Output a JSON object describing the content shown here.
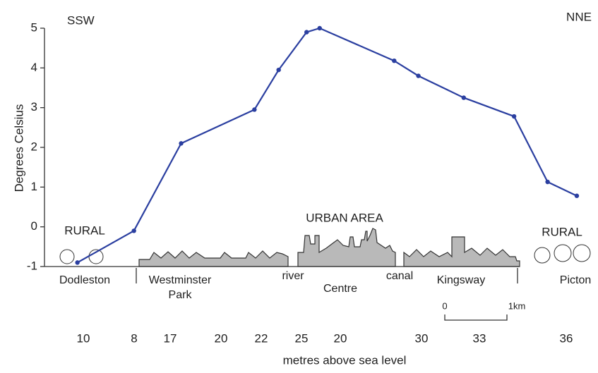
{
  "chart_data": {
    "type": "line",
    "y_label": "Degrees Celsius",
    "x_label": "metres above sea level",
    "annotations": [
      "SSW",
      "NNE",
      "RURAL",
      "URBAN AREA",
      "RURAL"
    ],
    "places": [
      "Dodleston",
      "Westminster",
      "Park",
      "river",
      "Centre",
      "canal",
      "Kingsway",
      "Picton"
    ],
    "elevations": [
      10,
      8,
      17,
      20,
      22,
      25,
      20,
      30,
      33,
      36
    ],
    "scale_bar": [
      "0",
      "1km"
    ],
    "x": [
      0.53,
      1.44,
      2.2,
      3.38,
      3.77,
      4.22,
      4.43,
      5.63,
      6.02,
      6.75,
      7.56,
      8.1,
      8.57
    ],
    "values": [
      -0.9,
      -0.1,
      2.1,
      2.95,
      3.95,
      4.9,
      5.0,
      4.18,
      3.8,
      3.25,
      2.78,
      1.13,
      0.78
    ],
    "color": "#2b3fa0",
    "xlim": [
      0,
      8.9
    ],
    "ylim": [
      -1,
      5
    ],
    "yticks": [
      -1,
      0,
      1,
      2,
      3,
      4,
      5
    ]
  }
}
